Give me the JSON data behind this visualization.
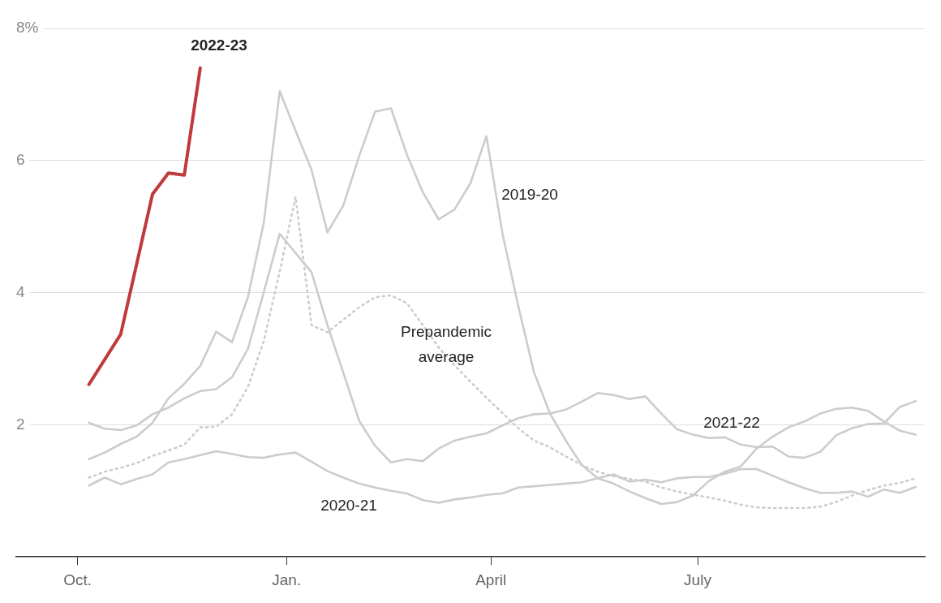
{
  "chart_data": {
    "type": "line",
    "x": [
      "2021-10-06",
      "2021-10-13",
      "2021-10-20",
      "2021-10-27",
      "2021-11-03",
      "2021-11-10",
      "2021-11-17",
      "2021-11-24",
      "2021-12-01",
      "2021-12-08",
      "2021-12-15",
      "2021-12-22",
      "2021-12-29",
      "2022-01-05",
      "2022-01-12",
      "2022-01-19",
      "2022-01-26",
      "2022-02-02",
      "2022-02-09",
      "2022-02-16",
      "2022-02-23",
      "2022-03-02",
      "2022-03-09",
      "2022-03-16",
      "2022-03-23",
      "2022-03-30",
      "2022-04-06",
      "2022-04-13",
      "2022-04-20",
      "2022-04-27",
      "2022-05-04",
      "2022-05-11",
      "2022-05-18",
      "2022-05-25",
      "2022-06-01",
      "2022-06-08",
      "2022-06-15",
      "2022-06-22",
      "2022-06-29",
      "2022-07-06",
      "2022-07-13",
      "2022-07-20",
      "2022-07-27",
      "2022-08-03",
      "2022-08-10",
      "2022-08-17",
      "2022-08-24",
      "2022-08-31",
      "2022-09-07",
      "2022-09-14",
      "2022-09-21",
      "2022-09-28",
      "2022-10-05"
    ],
    "xlim": [
      "2021-09-04",
      "2022-10-09"
    ],
    "xticks": [
      {
        "value": "2021-10-01",
        "label": "Oct."
      },
      {
        "value": "2022-01-01",
        "label": "Jan."
      },
      {
        "value": "2022-04-01",
        "label": "April"
      },
      {
        "value": "2022-07-01",
        "label": "July"
      }
    ],
    "ylim": [
      0,
      8
    ],
    "yticks": [
      2,
      4,
      6,
      {
        "value": 8,
        "label": "8%"
      }
    ],
    "grid": "y",
    "legend": false,
    "marker": "none",
    "series": [
      {
        "name": "2019-20",
        "color": "#cccccc",
        "values": [
          1.48,
          1.58,
          1.71,
          1.82,
          2.03,
          2.4,
          2.62,
          2.89,
          3.41,
          3.25,
          3.93,
          5.06,
          7.05,
          6.45,
          5.86,
          4.91,
          5.32,
          6.07,
          6.74,
          6.79,
          6.09,
          5.52,
          5.11,
          5.26,
          5.66,
          6.37,
          4.91,
          3.8,
          2.79,
          2.17,
          1.76,
          1.39,
          1.19,
          1.11,
          0.99,
          0.89,
          0.8,
          0.83,
          0.93,
          1.15,
          1.29,
          1.37,
          1.64,
          1.82,
          1.96,
          2.05,
          2.17,
          2.24,
          2.26,
          2.21,
          2.05,
          1.91,
          1.85
        ]
      },
      {
        "name": "2020-21",
        "color": "#cccccc",
        "values": [
          1.08,
          1.2,
          1.1,
          1.18,
          1.25,
          1.43,
          1.48,
          1.54,
          1.6,
          1.56,
          1.51,
          1.5,
          1.55,
          1.58,
          1.44,
          1.3,
          1.2,
          1.11,
          1.05,
          1.0,
          0.96,
          0.86,
          0.82,
          0.87,
          0.9,
          0.94,
          0.96,
          1.05,
          1.07,
          1.09,
          1.11,
          1.13,
          1.19,
          1.25,
          1.14,
          1.17,
          1.13,
          1.19,
          1.21,
          1.21,
          1.26,
          1.33,
          1.33,
          1.23,
          1.13,
          1.04,
          0.97,
          0.97,
          0.99,
          0.91,
          1.02,
          0.97,
          1.06
        ]
      },
      {
        "name": "2021-22",
        "color": "#cccccc",
        "values": [
          2.03,
          1.94,
          1.92,
          1.99,
          2.16,
          2.26,
          2.4,
          2.51,
          2.54,
          2.72,
          3.15,
          4.01,
          4.89,
          4.6,
          4.31,
          3.51,
          2.79,
          2.06,
          1.68,
          1.43,
          1.48,
          1.45,
          1.64,
          1.76,
          1.82,
          1.87,
          1.99,
          2.1,
          2.16,
          2.17,
          2.23,
          2.35,
          2.48,
          2.45,
          2.39,
          2.43,
          2.17,
          1.93,
          1.85,
          1.8,
          1.81,
          1.7,
          1.66,
          1.67,
          1.52,
          1.5,
          1.59,
          1.84,
          1.95,
          2.01,
          2.02,
          2.27,
          2.36
        ]
      },
      {
        "name": "Prepandemic average",
        "color": "#cccccc",
        "line_style": "dotted",
        "values": [
          1.2,
          1.29,
          1.35,
          1.42,
          1.53,
          1.61,
          1.7,
          1.96,
          1.97,
          2.16,
          2.57,
          3.27,
          4.32,
          5.45,
          3.51,
          3.4,
          3.59,
          3.78,
          3.93,
          3.96,
          3.84,
          3.51,
          3.17,
          2.9,
          2.65,
          2.41,
          2.18,
          1.95,
          1.76,
          1.66,
          1.52,
          1.39,
          1.29,
          1.22,
          1.18,
          1.14,
          1.05,
          0.99,
          0.94,
          0.9,
          0.85,
          0.79,
          0.75,
          0.74,
          0.74,
          0.74,
          0.76,
          0.83,
          0.93,
          1.01,
          1.08,
          1.12,
          1.19
        ]
      },
      {
        "name": "2022-23",
        "color": "#c0393b",
        "x": [
          "2021-10-06",
          "2021-10-20",
          "2021-11-03",
          "2021-11-10",
          "2021-11-17",
          "2021-11-24"
        ],
        "values": [
          2.61,
          3.37,
          5.49,
          5.81,
          5.78,
          7.4
        ]
      }
    ]
  }
}
